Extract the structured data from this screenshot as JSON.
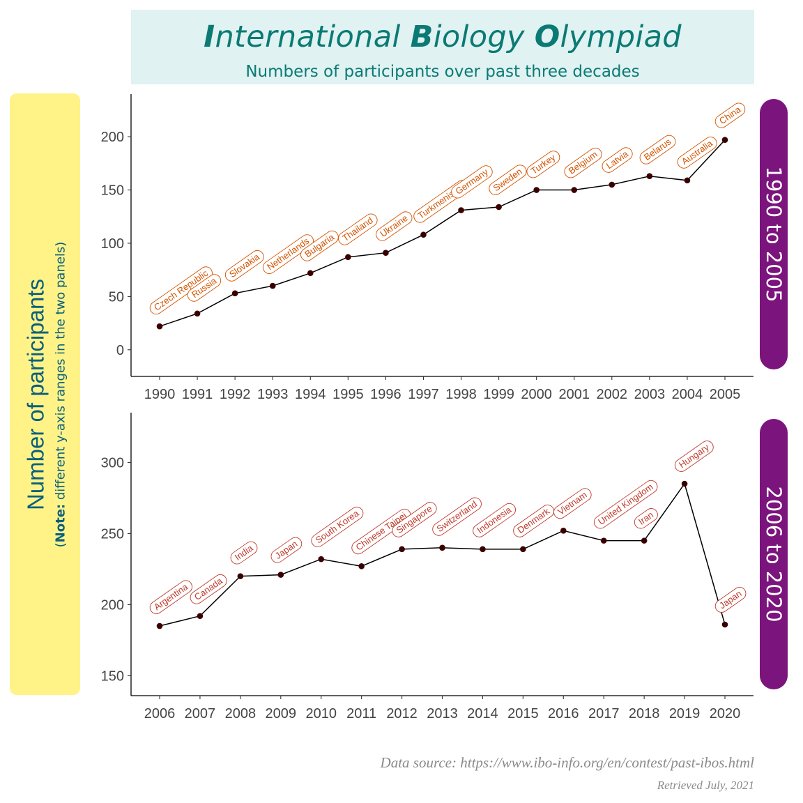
{
  "title": {
    "main_parts": [
      {
        "text": "I",
        "bold": true
      },
      {
        "text": "nternational ",
        "bold": false
      },
      {
        "text": "B",
        "bold": true
      },
      {
        "text": "iology ",
        "bold": false
      },
      {
        "text": "O",
        "bold": true
      },
      {
        "text": "lympiad",
        "bold": false
      }
    ],
    "subtitle": "Numbers of participants over past three decades"
  },
  "ylabel": {
    "main": "Number of participants",
    "note_bold": "Note:",
    "note_open": "(",
    "note_rest": " different y-axis ranges in the two panels)"
  },
  "caption": {
    "source": "Data source: https://www.ibo-info.org/en/contest/past-ibos.html",
    "retrieved": "Retrieved July, 2021"
  },
  "colors": {
    "title_bg": "#e0f2f1",
    "title_text": "#0b7a75",
    "ylabel_bg": "#fff388",
    "ylabel_text": "#0b5f7e",
    "strip_bg": "#7b147d",
    "label_top": "#d35400",
    "label_bottom": "#c0392b"
  },
  "chart_data": [
    {
      "type": "line",
      "panel": "1990 to 2005",
      "ylim": [
        -25,
        240
      ],
      "yticks": [
        0,
        50,
        100,
        150,
        200
      ],
      "x": [
        1990,
        1991,
        1992,
        1993,
        1994,
        1995,
        1996,
        1997,
        1998,
        1999,
        2000,
        2001,
        2002,
        2003,
        2004,
        2005
      ],
      "y": [
        22,
        34,
        53,
        60,
        72,
        87,
        91,
        108,
        131,
        134,
        150,
        150,
        155,
        163,
        159,
        197
      ],
      "labels": [
        "Czech Republic",
        "Russia",
        "Slovakia",
        "Netherlands",
        "Bulgaria",
        "Thailand",
        "Ukraine",
        "Turkmenistan",
        "Germany",
        "Sweden",
        "Turkey",
        "Belgium",
        "Latvia",
        "Belarus",
        "Australia",
        "China"
      ],
      "label_color": "#d35400"
    },
    {
      "type": "line",
      "panel": "2006 to 2020",
      "ylim": [
        136,
        335
      ],
      "yticks": [
        150,
        200,
        250,
        300
      ],
      "x": [
        2006,
        2007,
        2008,
        2009,
        2010,
        2011,
        2012,
        2013,
        2014,
        2015,
        2016,
        2017,
        2018,
        2019,
        2020
      ],
      "y": [
        185,
        192,
        220,
        221,
        232,
        227,
        239,
        240,
        239,
        239,
        252,
        245,
        245,
        285,
        186
      ],
      "labels": [
        "Argentina",
        "Canada",
        "India",
        "Japan",
        "South Korea",
        "Chinese Taipei",
        "Singapore",
        "Switzerland",
        "Indonesia",
        "Denmark",
        "Vietnam",
        "United Kingdom",
        "Iran",
        "Hungary",
        "Japan"
      ],
      "label_color": "#c0392b"
    }
  ]
}
